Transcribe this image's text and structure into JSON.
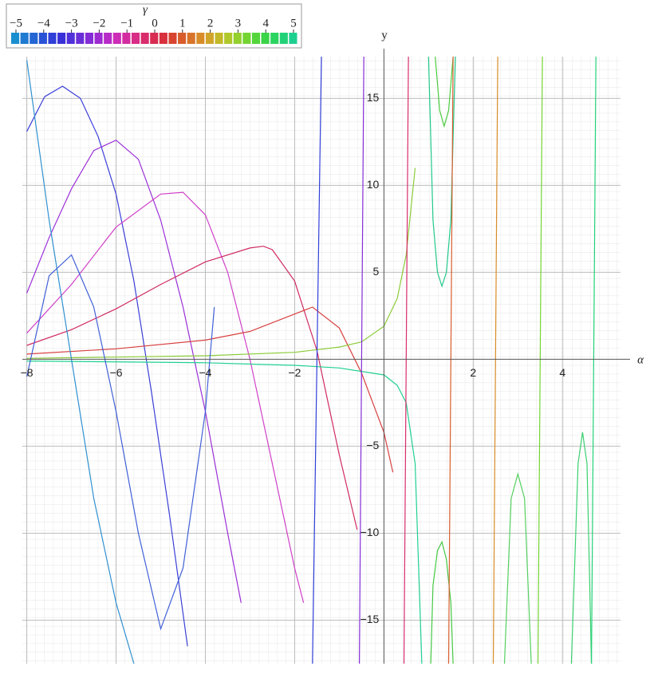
{
  "chart_data": {
    "type": "line",
    "x_label": "α",
    "y_label": "y",
    "xlim": [
      -8.1,
      5.3
    ],
    "ylim": [
      -17.5,
      17.4
    ],
    "xticks": [
      {
        "value": -8,
        "label": "−8"
      },
      {
        "value": -6,
        "label": "−6"
      },
      {
        "value": -4,
        "label": "−4"
      },
      {
        "value": -2,
        "label": "−2"
      },
      2,
      4
    ],
    "yticks": [
      {
        "value": -15,
        "label": "−15"
      },
      {
        "value": -10,
        "label": "−10"
      },
      {
        "value": -5,
        "label": "−5"
      },
      5,
      10,
      15
    ],
    "grid": true,
    "colorbar": {
      "title": "γ",
      "lim": [
        -5,
        5
      ],
      "ticks": [
        {
          "value": -5,
          "label": "−5"
        },
        {
          "value": -4,
          "label": "−4"
        },
        {
          "value": -3,
          "label": "−3"
        },
        {
          "value": -2,
          "label": "−2"
        },
        {
          "value": -1,
          "label": "−1"
        },
        0,
        1,
        2,
        3,
        4,
        5
      ],
      "colors": [
        "#1a8fd0",
        "#1f7ad2",
        "#2466d4",
        "#2a52d6",
        "#2f3fd8",
        "#3a30d8",
        "#5030d8",
        "#6a2ed8",
        "#842cd6",
        "#9e2ad2",
        "#b82ac8",
        "#cc2cb8",
        "#d42ca0",
        "#d82c86",
        "#d82c6c",
        "#d82c52",
        "#d8303c",
        "#d84430",
        "#d85c2c",
        "#d8742a",
        "#d88c28",
        "#d0a428",
        "#c4b828",
        "#b0c82a",
        "#94d02e",
        "#74d432",
        "#54d63a",
        "#3ad448",
        "#2ad460",
        "#22d278",
        "#1ed090"
      ]
    },
    "series": [
      {
        "color": "#3a3fd8",
        "x": [
          -8,
          -7.6,
          -7.2,
          -6.8,
          -6.4,
          -6,
          -5.6,
          -5.2,
          -4.8,
          -4.4
        ],
        "values": [
          13.1,
          15.1,
          15.7,
          15,
          12.8,
          9.5,
          4.5,
          -2,
          -9,
          -16.5
        ]
      },
      {
        "color": "#9b30d8",
        "x": [
          -8,
          -7.5,
          -7,
          -6.5,
          -6,
          -5.5,
          -5,
          -4.5,
          -4,
          -3.5,
          -3.2
        ],
        "values": [
          3.8,
          7,
          9.8,
          12,
          12.6,
          11.5,
          8,
          3,
          -3,
          -10,
          -14
        ]
      },
      {
        "color": "#d040c8",
        "x": [
          -8,
          -7,
          -6,
          -5,
          -4.5,
          -4,
          -3.5,
          -3,
          -2.5,
          -2,
          -1.8
        ],
        "values": [
          1.5,
          4.3,
          7.6,
          9.5,
          9.6,
          8.3,
          5,
          0,
          -6,
          -12,
          -14
        ]
      },
      {
        "color": "#d02a60",
        "x": [
          -8,
          -7,
          -6,
          -5,
          -4,
          -3,
          -2.7,
          -2.5,
          -2,
          -1.5,
          -1,
          -0.6
        ],
        "values": [
          0.8,
          1.7,
          2.9,
          4.3,
          5.6,
          6.4,
          6.5,
          6.3,
          4.5,
          0.5,
          -5.5,
          -9.8
        ]
      },
      {
        "color": "#d84040",
        "x": [
          -8,
          -6,
          -4,
          -3,
          -2,
          -1.6,
          -1,
          -0.5,
          0,
          0.2
        ],
        "values": [
          0.3,
          0.6,
          1.1,
          1.6,
          2.6,
          3,
          1.8,
          -0.8,
          -4.2,
          -6.5
        ]
      },
      {
        "color": "#8ccc3a",
        "x": [
          -8,
          -4,
          -2,
          -1,
          -0.5,
          0,
          0.3,
          0.5,
          0.7
        ],
        "values": [
          0.05,
          0.2,
          0.4,
          0.7,
          1,
          1.9,
          3.5,
          6,
          11
        ]
      },
      {
        "color": "#44c844",
        "x": [
          1.05,
          1.1,
          1.2,
          1.3,
          1.4,
          1.5,
          1.55
        ],
        "values": [
          -17.5,
          -13,
          -11,
          -10.5,
          -11.5,
          -14,
          -17.5
        ]
      },
      {
        "color": "#20d090",
        "x": [
          -8,
          -4,
          -2,
          -1,
          0,
          0.3,
          0.5,
          0.7,
          0.85
        ],
        "values": [
          -0.1,
          -0.2,
          -0.35,
          -0.5,
          -0.9,
          -1.5,
          -2.5,
          -6,
          -17.5
        ]
      },
      {
        "color": "#22c88a",
        "x": [
          1,
          1.1,
          1.2,
          1.3,
          1.4,
          1.5,
          1.6
        ],
        "values": [
          17.4,
          8,
          5,
          4.2,
          5,
          8,
          17.4
        ]
      },
      {
        "color": "#4ccc40",
        "x": [
          1.15,
          1.25,
          1.35,
          1.45,
          1.55
        ],
        "values": [
          17.4,
          14.3,
          13.4,
          14.3,
          17.4
        ]
      },
      {
        "color": "#54d060",
        "x": [
          2.7,
          2.85,
          3,
          3.15,
          3.3
        ],
        "values": [
          -17.5,
          -8,
          -6.6,
          -8,
          -17.5
        ]
      },
      {
        "color": "#3ad070",
        "x": [
          4.2,
          4.35,
          4.45,
          4.55,
          4.65
        ],
        "values": [
          -17.5,
          -6,
          -4.2,
          -6,
          -17.5
        ]
      },
      {
        "color": "#3090d0",
        "x": [
          -8,
          -7.5,
          -7,
          -6.5,
          -6,
          -5.6
        ],
        "values": [
          17.2,
          8,
          0,
          -8,
          -14,
          -17.5
        ]
      },
      {
        "color": "#4060d8",
        "x": [
          -8,
          -7.5,
          -7,
          -6.5,
          -6,
          -5.5,
          -5,
          -4.5,
          -4,
          -3.8
        ],
        "values": [
          -1,
          4.8,
          6,
          3,
          -3,
          -10,
          -15.5,
          -12,
          -3,
          3
        ]
      },
      {
        "color": "#2f3fd8",
        "x": [
          -1.6,
          -1.5,
          -1.4
        ],
        "values": [
          -17.5,
          0,
          17.4
        ]
      },
      {
        "color": "#842cd6",
        "x": [
          -0.55,
          -0.5,
          -0.45
        ],
        "values": [
          -17.5,
          0,
          17.4
        ]
      },
      {
        "color": "#d82c6c",
        "x": [
          0.45,
          0.5,
          0.55
        ],
        "values": [
          -17.5,
          0,
          17.4
        ]
      },
      {
        "color": "#d85c2c",
        "x": [
          1.45,
          1.5,
          1.55
        ],
        "values": [
          -17.5,
          0,
          17.4
        ]
      },
      {
        "color": "#d88c28",
        "x": [
          2.45,
          2.5,
          2.55
        ],
        "values": [
          -17.5,
          0,
          17.4
        ]
      },
      {
        "color": "#74d432",
        "x": [
          3.45,
          3.5,
          3.55
        ],
        "values": [
          -17.5,
          0,
          17.4
        ]
      },
      {
        "color": "#22d278",
        "x": [
          4.65,
          4.7,
          4.75
        ],
        "values": [
          -17.5,
          0,
          17.4
        ]
      }
    ]
  }
}
